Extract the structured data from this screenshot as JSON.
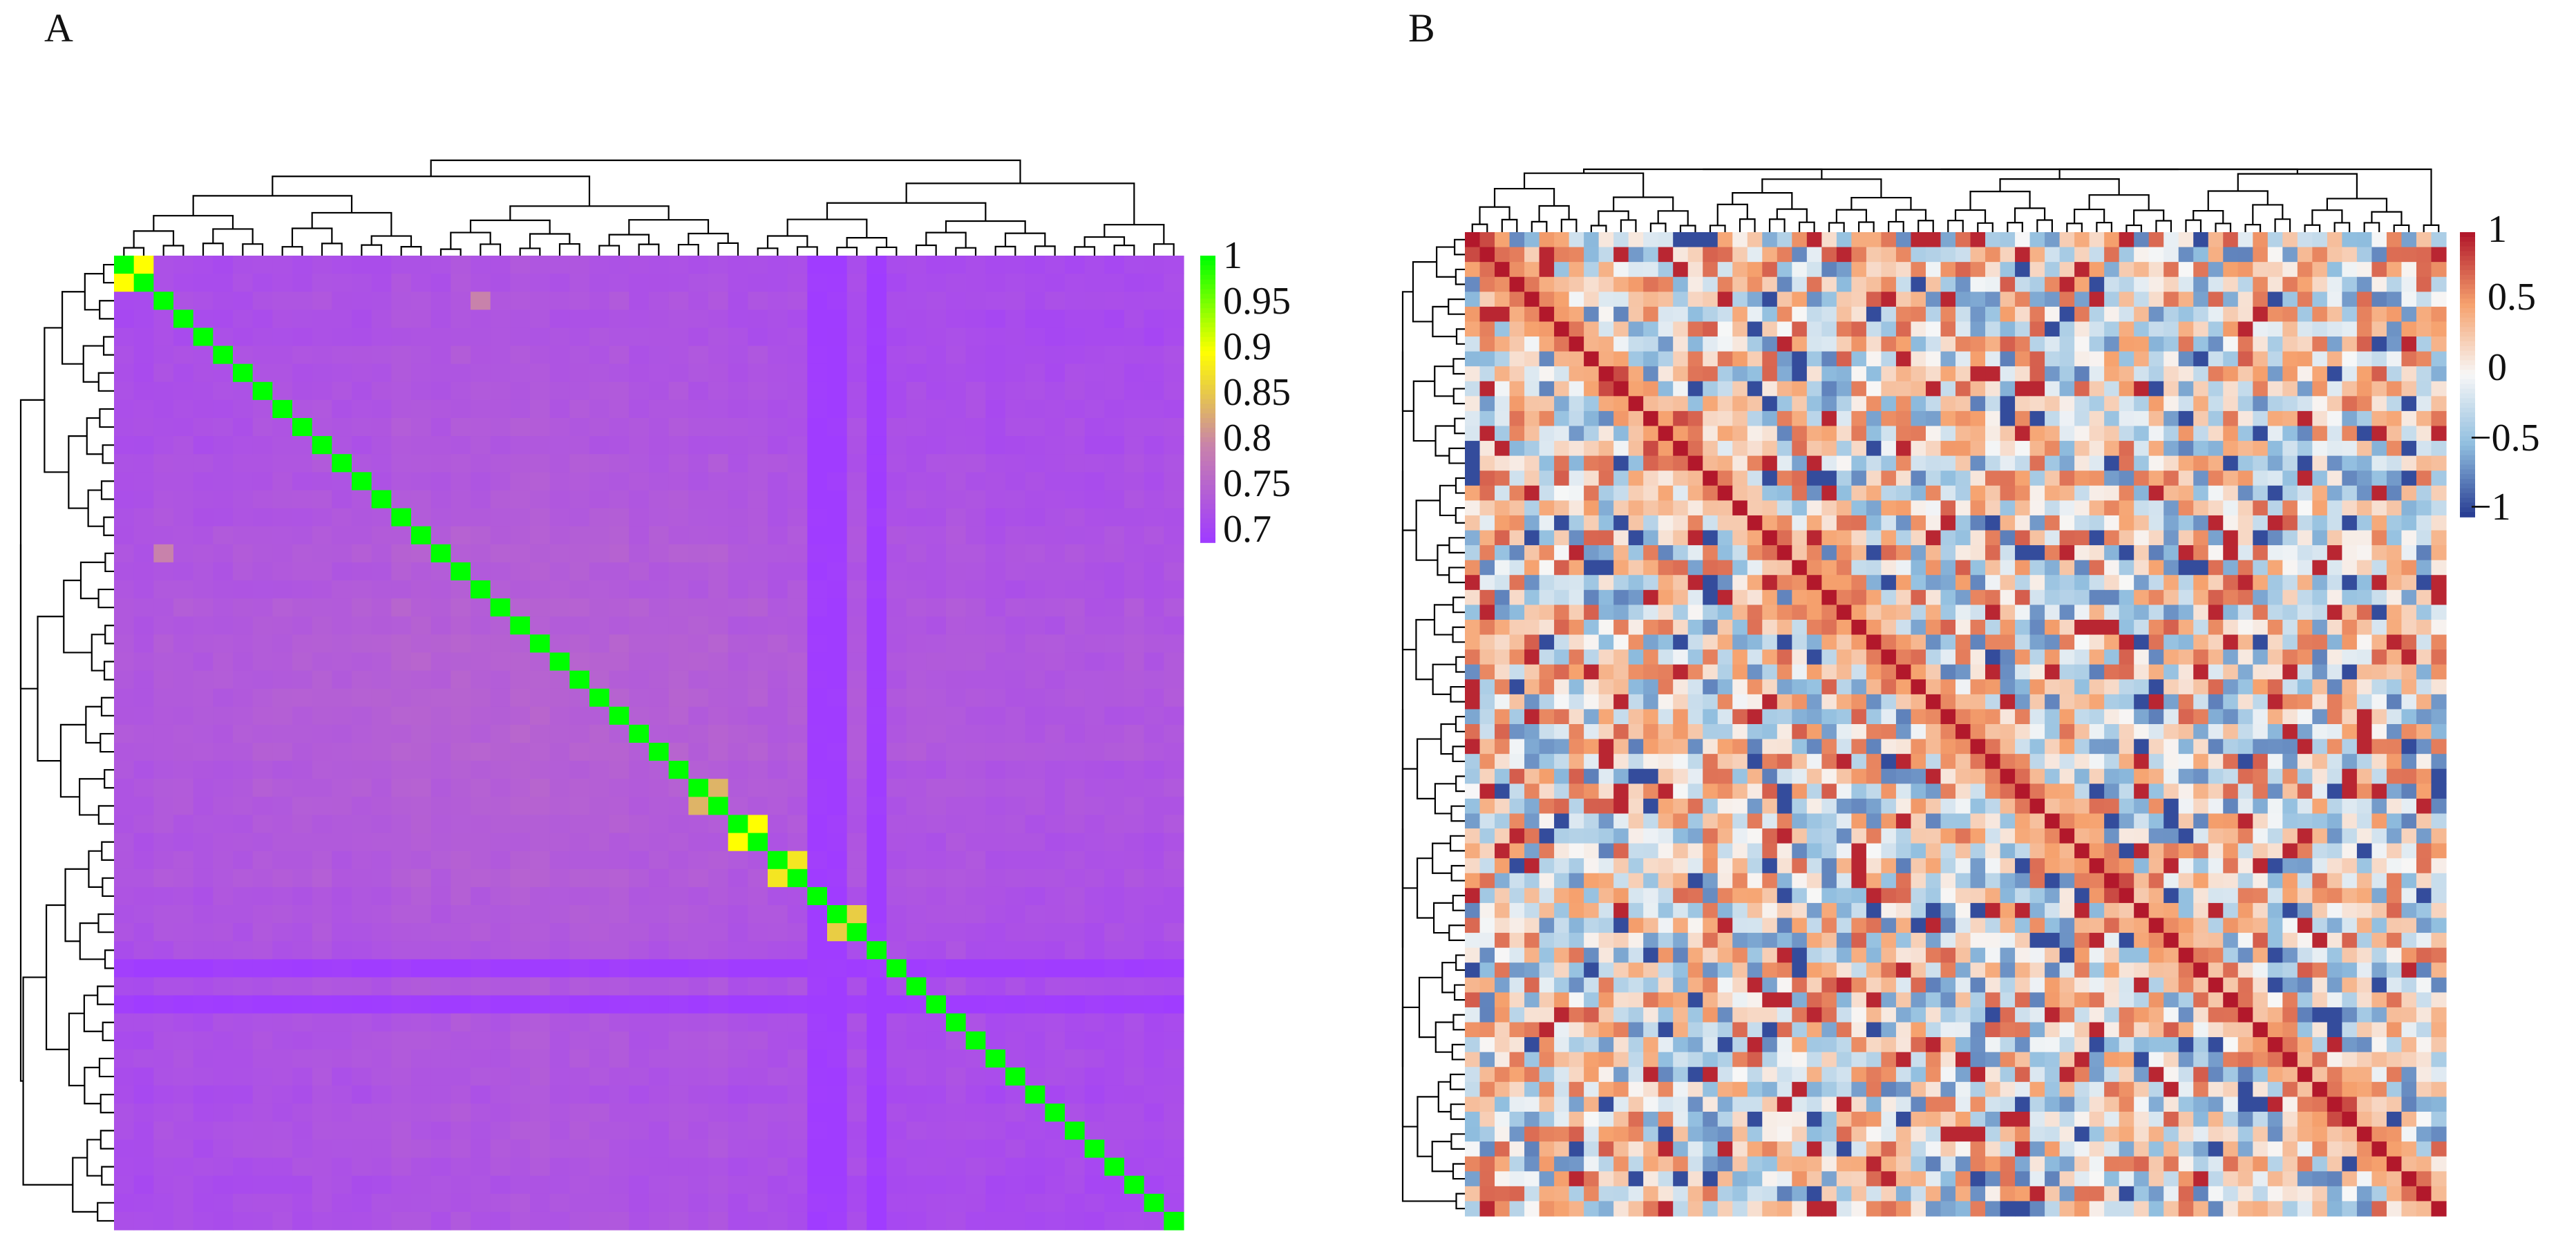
{
  "figure": {
    "panels": [
      "A",
      "B"
    ]
  },
  "colors": {
    "a_scale": [
      "#a03cff",
      "#c882ab",
      "#ffff00",
      "#00ff00"
    ],
    "b_scale": [
      "#2a3f94",
      "#90bedf",
      "#f7f7f7",
      "#f6a26e",
      "#b2182b"
    ],
    "dendrogram": "#000000",
    "border": "#000000"
  },
  "chart_data": [
    {
      "panel": "A",
      "type": "heatmap",
      "title": "",
      "matrix_size": 54,
      "value_range": [
        0.7,
        1
      ],
      "diagonal_value": 1,
      "colorbar": {
        "ticks": [
          1,
          0.95,
          0.9,
          0.85,
          0.8,
          0.75,
          0.7
        ],
        "tick_labels": [
          "1",
          "0.95",
          "0.9",
          "0.85",
          "0.8",
          "0.75",
          "0.7"
        ],
        "colors": [
          "#a03cff",
          "#c882ab",
          "#ffff00",
          "#00ff00"
        ],
        "position": "right"
      },
      "off_diagonal_typical": [
        0.72,
        0.77
      ],
      "low_rows": [
        39,
        41
      ],
      "low_cols": [
        35,
        36,
        38
      ],
      "high_blocks": [
        {
          "rows": [
            29,
            30
          ],
          "value": 0.84
        },
        {
          "rows": [
            31,
            32
          ],
          "value": 0.9
        },
        {
          "rows": [
            33,
            34
          ],
          "value": 0.88
        },
        {
          "rows": [
            36,
            37
          ],
          "value": 0.86
        },
        {
          "rows": [
            0,
            1
          ],
          "value": 0.9
        }
      ],
      "outliers": [
        {
          "row": 2,
          "col": 18,
          "value": 0.8
        },
        {
          "row": 16,
          "col": 2,
          "value": 0.8
        }
      ],
      "row_dendrogram": true,
      "col_dendrogram": true
    },
    {
      "panel": "B",
      "type": "heatmap",
      "title": "",
      "matrix_size": 66,
      "value_range": [
        -1,
        1
      ],
      "diagonal_value": 1,
      "colorbar": {
        "ticks": [
          1,
          0.5,
          0,
          -0.5,
          -1
        ],
        "tick_labels": [
          "1",
          "0.5",
          "0",
          "−0.5",
          "−1"
        ],
        "colors": [
          "#2a3f94",
          "#90bedf",
          "#f7f7f7",
          "#f6a26e",
          "#b2182b"
        ],
        "position": "right"
      },
      "off_diagonal_distribution": "mixed, roughly uniform in [-1, 1] with most values in [-0.6, 0.6]",
      "near_diagonal_positive_band": 0.5,
      "row_dendrogram": true,
      "col_dendrogram": true
    }
  ]
}
